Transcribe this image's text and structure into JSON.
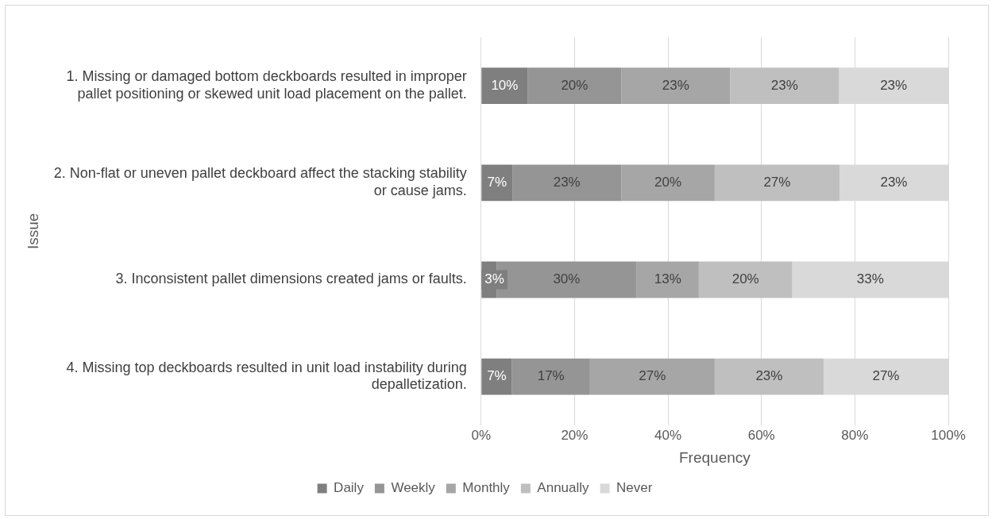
{
  "chart_data": {
    "type": "bar",
    "orientation": "horizontal",
    "stacked": true,
    "xlabel": "Frequency",
    "ylabel": "Issue",
    "categories": [
      "1. Missing or damaged bottom deckboards resulted in improper pallet positioning or skewed unit load placement on the pallet.",
      "2. Non-flat or uneven pallet deckboard affect the stacking stability or cause jams.",
      "3. Inconsistent pallet dimensions created jams or faults.",
      "4. Missing top deckboards resulted in unit load instability during depalletization."
    ],
    "series": [
      {
        "name": "Daily",
        "color": "#7f7f7f",
        "values": [
          10,
          6.7,
          3.3,
          6.6
        ],
        "value_labels": [
          "10%",
          "7%",
          "3%",
          "7%"
        ]
      },
      {
        "name": "Weekly",
        "color": "#959595",
        "values": [
          20,
          23.3,
          30,
          16.7
        ],
        "value_labels": [
          "20%",
          "23%",
          "30%",
          "17%"
        ]
      },
      {
        "name": "Monthly",
        "color": "#a6a6a6",
        "values": [
          23.3,
          20,
          13.3,
          26.7
        ],
        "value_labels": [
          "23%",
          "20%",
          "13%",
          "27%"
        ]
      },
      {
        "name": "Annually",
        "color": "#bfbfbf",
        "values": [
          23.3,
          26.7,
          20,
          23.3
        ],
        "value_labels": [
          "23%",
          "27%",
          "20%",
          "23%"
        ]
      },
      {
        "name": "Never",
        "color": "#d9d9d9",
        "values": [
          23.4,
          23.3,
          33.4,
          26.7
        ],
        "value_labels": [
          "23%",
          "23%",
          "33%",
          "27%"
        ]
      }
    ],
    "xlim": [
      0,
      100
    ],
    "xticks": [
      {
        "value": 0,
        "label": "0%"
      },
      {
        "value": 20,
        "label": "20%"
      },
      {
        "value": 40,
        "label": "40%"
      },
      {
        "value": 60,
        "label": "60%"
      },
      {
        "value": 80,
        "label": "80%"
      },
      {
        "value": 100,
        "label": "100%"
      }
    ],
    "grid": "x",
    "legend": "bottom"
  }
}
